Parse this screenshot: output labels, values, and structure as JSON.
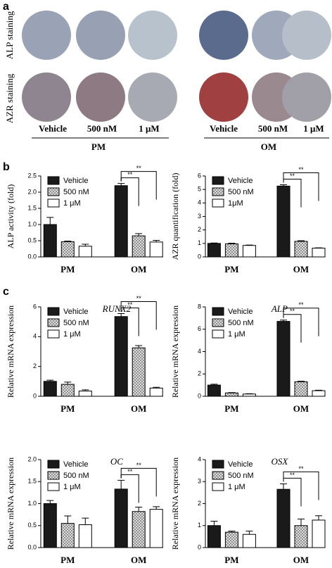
{
  "panel_labels": [
    "a",
    "b",
    "c"
  ],
  "staining": {
    "row_labels": [
      "ALP staining",
      "AZR staining"
    ],
    "column_labels": [
      "Vehicle",
      "500 nM",
      "1 μM"
    ],
    "groups": [
      "PM",
      "OM"
    ]
  },
  "chart_data": [
    {
      "type": "bar",
      "ylabel": "ALP activity (fold)",
      "categories": [
        "PM",
        "OM"
      ],
      "series": [
        {
          "name": "Vehicle",
          "color": "#1a1a1a",
          "values": [
            1.0,
            2.2
          ],
          "errors": [
            0.22,
            0.07
          ]
        },
        {
          "name": "500 nM",
          "color": "#8a8a8a",
          "values": [
            0.47,
            0.65
          ],
          "errors": [
            0.02,
            0.07
          ]
        },
        {
          "name": "1 μM",
          "color": "#ffffff",
          "values": [
            0.33,
            0.46
          ],
          "errors": [
            0.06,
            0.05
          ]
        }
      ],
      "ylim": [
        0,
        2.5
      ],
      "yticks": [
        {
          "value": 0,
          "label": "0.0"
        },
        0.5,
        {
          "value": 1,
          "label": "1.0"
        },
        1.5,
        {
          "value": 2,
          "label": "2.0"
        },
        2.5
      ],
      "annotations": [
        "**",
        "**"
      ],
      "legend": "upper left"
    },
    {
      "type": "bar",
      "ylabel": "AZR quantification (fold)",
      "categories": [
        "PM",
        "OM"
      ],
      "series": [
        {
          "name": "Vehicle",
          "color": "#1a1a1a",
          "values": [
            1.0,
            5.25
          ],
          "errors": [
            0.03,
            0.1
          ]
        },
        {
          "name": "500 nM",
          "color": "#8a8a8a",
          "values": [
            0.97,
            1.15
          ],
          "errors": [
            0.05,
            0.05
          ]
        },
        {
          "name": "1μM",
          "color": "#ffffff",
          "values": [
            0.85,
            0.65
          ],
          "errors": [
            0.03,
            0.02
          ]
        }
      ],
      "ylim": [
        0,
        6
      ],
      "yticks": [
        0,
        1,
        2,
        3,
        4,
        5,
        6
      ],
      "annotations": [
        "**",
        "**"
      ],
      "legend": "upper left"
    },
    {
      "type": "bar",
      "title": "RUNX2",
      "ylabel": "Relative mRNA expression",
      "categories": [
        "PM",
        "OM"
      ],
      "series": [
        {
          "name": "Vehicle",
          "color": "#1a1a1a",
          "values": [
            1.0,
            5.35
          ],
          "errors": [
            0.08,
            0.2
          ]
        },
        {
          "name": "500 nM",
          "color": "#8a8a8a",
          "values": [
            0.8,
            3.25
          ],
          "errors": [
            0.15,
            0.15
          ]
        },
        {
          "name": "1 μM",
          "color": "#ffffff",
          "values": [
            0.35,
            0.55
          ],
          "errors": [
            0.08,
            0.05
          ]
        }
      ],
      "ylim": [
        0,
        6
      ],
      "yticks": [
        0,
        2,
        4,
        6
      ],
      "annotations": [
        "**",
        "**"
      ],
      "legend": "upper left"
    },
    {
      "type": "bar",
      "title": "ALP",
      "ylabel": "Relative mRNA expression",
      "categories": [
        "PM",
        "OM"
      ],
      "series": [
        {
          "name": "Vehicle",
          "color": "#1a1a1a",
          "values": [
            1.0,
            6.7
          ],
          "errors": [
            0.08,
            0.12
          ]
        },
        {
          "name": "500 nM",
          "color": "#8a8a8a",
          "values": [
            0.3,
            1.3
          ],
          "errors": [
            0.03,
            0.05
          ]
        },
        {
          "name": "1 μM",
          "color": "#ffffff",
          "values": [
            0.2,
            0.5
          ],
          "errors": [
            0.03,
            0.04
          ]
        }
      ],
      "ylim": [
        0,
        8
      ],
      "yticks": [
        0,
        2,
        4,
        6,
        8
      ],
      "annotations": [
        "**",
        "**"
      ],
      "legend": "upper left"
    },
    {
      "type": "bar",
      "title": "OC",
      "ylabel": "Relative mRNA expression",
      "categories": [
        "PM",
        "OM"
      ],
      "series": [
        {
          "name": "Vehicle",
          "color": "#1a1a1a",
          "values": [
            1.0,
            1.33
          ],
          "errors": [
            0.07,
            0.2
          ]
        },
        {
          "name": "500 nM",
          "color": "#8a8a8a",
          "values": [
            0.55,
            0.82
          ],
          "errors": [
            0.17,
            0.1
          ]
        },
        {
          "name": "1 μM",
          "color": "#ffffff",
          "values": [
            0.52,
            0.87
          ],
          "errors": [
            0.15,
            0.06
          ]
        }
      ],
      "ylim": [
        0,
        2
      ],
      "yticks": [
        {
          "value": 0,
          "label": "0.0"
        },
        0.5,
        {
          "value": 1,
          "label": "1.0"
        },
        1.5,
        {
          "value": 2,
          "label": "2.0"
        }
      ],
      "annotations": [
        "**",
        "**"
      ],
      "legend": "upper left"
    },
    {
      "type": "bar",
      "title": "OSX",
      "ylabel": "Relative mRNA expression",
      "categories": [
        "PM",
        "OM"
      ],
      "series": [
        {
          "name": "Vehicle",
          "color": "#1a1a1a",
          "values": [
            1.0,
            2.65
          ],
          "errors": [
            0.2,
            0.25
          ]
        },
        {
          "name": "500 nM",
          "color": "#8a8a8a",
          "values": [
            0.7,
            1.0
          ],
          "errors": [
            0.05,
            0.3
          ]
        },
        {
          "name": "1 μM",
          "color": "#ffffff",
          "values": [
            0.6,
            1.25
          ],
          "errors": [
            0.15,
            0.2
          ]
        }
      ],
      "ylim": [
        0,
        4
      ],
      "yticks": [
        0,
        1,
        2,
        3,
        4
      ],
      "annotations": [
        "**",
        "**"
      ],
      "legend": "upper left"
    }
  ]
}
